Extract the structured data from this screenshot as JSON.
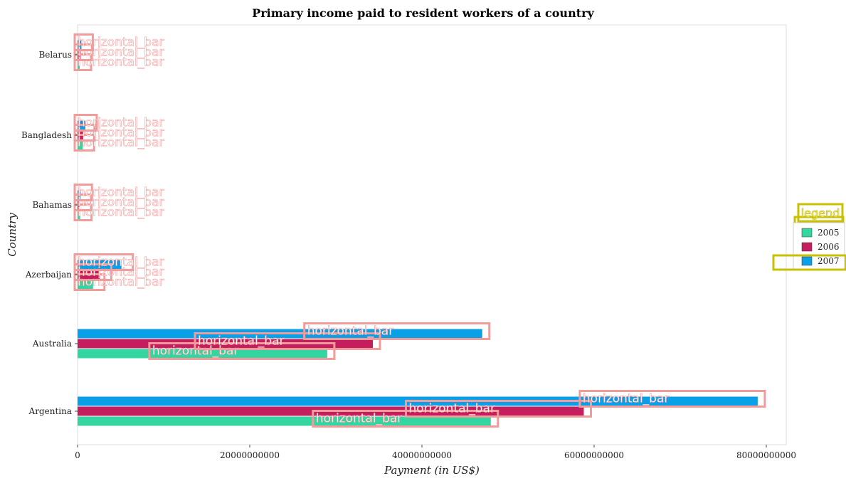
{
  "title": "Primary income paid to resident workers of a country",
  "chart_data": {
    "type": "bar",
    "orientation": "horizontal",
    "title": "Primary income paid to resident workers of a country",
    "xlabel": "Payment (in US$)",
    "ylabel": "Country",
    "xlim": [
      0,
      83000000000
    ],
    "x_ticks": [
      0,
      20000000000,
      40000000000,
      60000000000,
      80000000000
    ],
    "x_tick_labels": [
      "0",
      "20000000000",
      "40000000000",
      "60000000000",
      "80000000000"
    ],
    "categories": [
      "Argentina",
      "Australia",
      "Azerbaijan",
      "Bahamas",
      "Bangladesh",
      "Belarus"
    ],
    "series": [
      {
        "name": "2005",
        "color": "#33d6a0",
        "values": [
          48000000000,
          29000000000,
          1800000000,
          300000000,
          600000000,
          250000000
        ]
      },
      {
        "name": "2006",
        "color": "#c41e5e",
        "values": [
          58800000000,
          34300000000,
          2600000000,
          250000000,
          650000000,
          350000000
        ]
      },
      {
        "name": "2007",
        "color": "#0aa0e8",
        "values": [
          79000000000,
          47000000000,
          5100000000,
          350000000,
          900000000,
          450000000
        ]
      }
    ],
    "grid": false,
    "legend": {
      "title": "legend",
      "placement": "right"
    },
    "annotations": [
      "horizontal_bar"
    ]
  }
}
